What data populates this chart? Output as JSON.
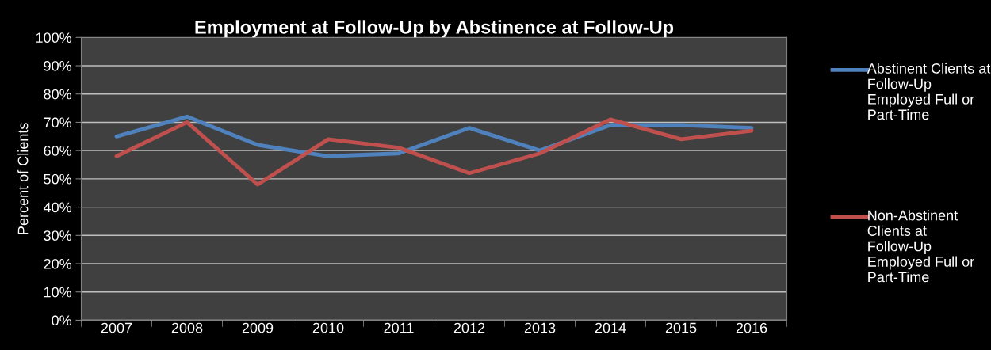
{
  "chart_data": {
    "type": "line",
    "title": "Employment at Follow-Up by Abstinence at Follow-Up",
    "ylabel": "Percent of Clients",
    "categories": [
      "2007",
      "2008",
      "2009",
      "2010",
      "2011",
      "2012",
      "2013",
      "2014",
      "2015",
      "2016"
    ],
    "series": [
      {
        "name": "Abstinent Clients at Follow-Up Employed Full or Part-Time",
        "color": "#4f81bd",
        "values": [
          65,
          72,
          62,
          58,
          59,
          68,
          60,
          69,
          69,
          68
        ]
      },
      {
        "name": "Non-Abstinent Clients at Follow-Up Employed Full or Part-Time",
        "color": "#c0504d",
        "values": [
          58,
          70,
          48,
          64,
          61,
          52,
          59,
          71,
          64,
          67
        ]
      }
    ],
    "ylim": [
      0,
      100
    ],
    "yticks": [
      {
        "value": 0,
        "label": "0%"
      },
      {
        "value": 10,
        "label": "10%"
      },
      {
        "value": 20,
        "label": "20%"
      },
      {
        "value": 30,
        "label": "30%"
      },
      {
        "value": 40,
        "label": "40%"
      },
      {
        "value": 50,
        "label": "50%"
      },
      {
        "value": 60,
        "label": "60%"
      },
      {
        "value": 70,
        "label": "70%"
      },
      {
        "value": 80,
        "label": "80%"
      },
      {
        "value": 90,
        "label": "90%"
      },
      {
        "value": 100,
        "label": "100%"
      }
    ],
    "grid": "y",
    "legend": "right",
    "marker": "none",
    "line_style": "solid"
  }
}
